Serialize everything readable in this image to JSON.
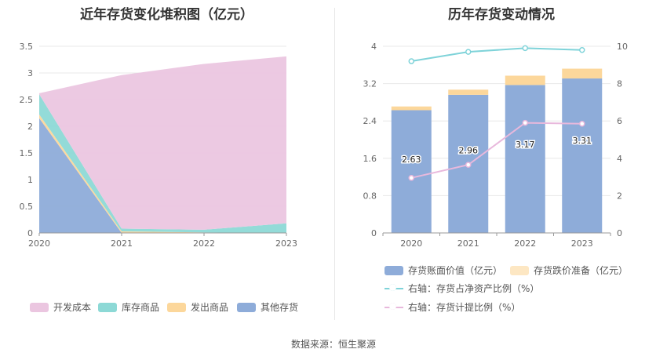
{
  "left_chart": {
    "title": "近年存货变化堆积图（亿元）",
    "chart_data": {
      "type": "area",
      "stacked": true,
      "x": [
        "2020",
        "2021",
        "2022",
        "2023"
      ],
      "ylim": [
        0,
        3.5
      ],
      "yticks": [
        "0",
        "0.5",
        "1",
        "1.5",
        "2",
        "2.5",
        "3",
        "3.5"
      ],
      "series": [
        {
          "name": "其他存货",
          "color": "#8eacd9",
          "values": [
            2.15,
            0.0,
            0.0,
            0.0
          ]
        },
        {
          "name": "发出商品",
          "color": "#fcd79b",
          "values": [
            0.07,
            0.03,
            0.01,
            0.0
          ]
        },
        {
          "name": "库存商品",
          "color": "#8dd9d6",
          "values": [
            0.38,
            0.05,
            0.05,
            0.18
          ]
        },
        {
          "name": "开发成本",
          "color": "#ebc6e0",
          "values": [
            0.02,
            2.88,
            3.11,
            3.13
          ]
        }
      ],
      "legend_order": [
        "开发成本",
        "库存商品",
        "发出商品",
        "其他存货"
      ],
      "legend_position": "bottom"
    }
  },
  "right_chart": {
    "title": "历年存货变动情况",
    "chart_data": {
      "type": "bar",
      "categories": [
        "2020",
        "2021",
        "2022",
        "2023"
      ],
      "ylim": [
        0,
        4
      ],
      "yticks": [
        "0",
        "0.8",
        "1.6",
        "2.4",
        "3.2",
        "4"
      ],
      "y2lim": [
        0,
        10
      ],
      "y2ticks": [
        "0",
        "2",
        "4",
        "6",
        "8",
        "10"
      ],
      "series": [
        {
          "name": "存货账面价值（亿元）",
          "color": "#8eacd9",
          "axis": "left",
          "stack": "inv",
          "values": [
            2.63,
            2.96,
            3.17,
            3.31
          ],
          "data_labels": [
            "2.63",
            "2.96",
            "3.17",
            "3.31"
          ]
        },
        {
          "name": "存货跌价准备（亿元）",
          "color": "#fcd79b",
          "axis": "left",
          "stack": "inv",
          "values": [
            0.08,
            0.11,
            0.2,
            0.21
          ]
        },
        {
          "name": "右轴：存货占净资产比例（%）",
          "color": "#7fd3d9",
          "axis": "right",
          "type": "line",
          "values": [
            9.2,
            9.7,
            9.9,
            9.8
          ]
        },
        {
          "name": "右轴：存货计提比例（%）",
          "color": "#e8b8dc",
          "axis": "right",
          "type": "line",
          "values": [
            2.95,
            3.65,
            5.9,
            5.85
          ]
        }
      ],
      "legend_position": "bottom"
    }
  },
  "source": "数据来源：恒生聚源"
}
